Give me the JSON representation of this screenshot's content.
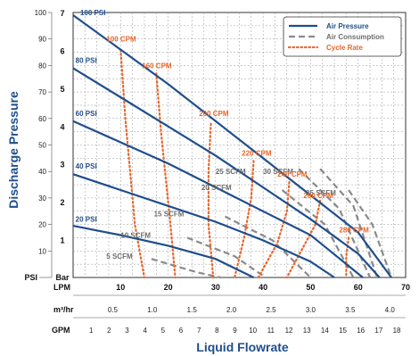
{
  "chart_data": {
    "type": "line",
    "title": "",
    "xlabel": "Liquid Flowrate",
    "ylabel": "Discharge Pressure",
    "x_axes": {
      "lpm": {
        "label": "LPM",
        "ticks": [
          "0",
          "10",
          "20",
          "30",
          "40",
          "50",
          "60",
          "70"
        ],
        "range": [
          0,
          70
        ]
      },
      "m3hr": {
        "label": "m³/hr",
        "ticks": [
          "0.5",
          "1.0",
          "1.5",
          "2.0",
          "2.5",
          "3.0",
          "3.5",
          "4.0"
        ]
      },
      "gpm": {
        "label": "GPM",
        "ticks": [
          "1",
          "2",
          "3",
          "4",
          "5",
          "6",
          "7",
          "8",
          "9",
          "10",
          "11",
          "12",
          "13",
          "14",
          "15",
          "16",
          "17",
          "18"
        ]
      }
    },
    "y_axes": {
      "psi": {
        "label": "PSI",
        "ticks": [
          "10",
          "20",
          "30",
          "40",
          "50",
          "60",
          "70",
          "80",
          "90",
          "100"
        ],
        "range": [
          0,
          100
        ]
      },
      "bar": {
        "label": "Bar",
        "ticks": [
          "1",
          "2",
          "3",
          "4",
          "5",
          "6",
          "7"
        ],
        "range": [
          0,
          7
        ]
      }
    },
    "legend": {
      "position": "top-right",
      "items": [
        {
          "name": "Air Pressure",
          "style": "solid",
          "color": "#1f4e8c"
        },
        {
          "name": "Air Consumption",
          "style": "dashed",
          "color": "#8a8a8a"
        },
        {
          "name": "Cycle Rate",
          "style": "dotted",
          "color": "#e8662a"
        }
      ]
    },
    "series": [
      {
        "name": "100 PSI",
        "group": "Air Pressure",
        "points": [
          [
            0,
            99
          ],
          [
            10,
            86
          ],
          [
            20,
            73
          ],
          [
            30,
            59
          ],
          [
            40,
            45
          ],
          [
            50,
            31
          ],
          [
            60,
            17
          ],
          [
            67,
            0
          ]
        ]
      },
      {
        "name": "80 PSI",
        "group": "Air Pressure",
        "points": [
          [
            0,
            79
          ],
          [
            10,
            68
          ],
          [
            20,
            57
          ],
          [
            30,
            46
          ],
          [
            40,
            34
          ],
          [
            50,
            22
          ],
          [
            60,
            9
          ],
          [
            64.5,
            0
          ]
        ]
      },
      {
        "name": "60 PSI",
        "group": "Air Pressure",
        "points": [
          [
            0,
            59
          ],
          [
            10,
            51
          ],
          [
            20,
            43
          ],
          [
            30,
            34
          ],
          [
            40,
            25
          ],
          [
            50,
            16
          ],
          [
            61,
            0
          ]
        ]
      },
      {
        "name": "40 PSI",
        "group": "Air Pressure",
        "points": [
          [
            0,
            39
          ],
          [
            10,
            33
          ],
          [
            20,
            27
          ],
          [
            30,
            21
          ],
          [
            40,
            14
          ],
          [
            50,
            6
          ],
          [
            55,
            0
          ]
        ]
      },
      {
        "name": "20 PSI",
        "group": "Air Pressure",
        "points": [
          [
            0,
            19.5
          ],
          [
            10,
            16
          ],
          [
            20,
            12
          ],
          [
            30,
            7
          ],
          [
            38,
            0
          ]
        ]
      },
      {
        "name": "5 SCFM",
        "group": "Air Consumption",
        "points": [
          [
            16.5,
            7
          ],
          [
            26,
            2
          ],
          [
            31,
            0
          ]
        ]
      },
      {
        "name": "10 SCFM",
        "group": "Air Consumption",
        "points": [
          [
            24,
            15
          ],
          [
            34,
            8
          ],
          [
            40.5,
            0
          ]
        ]
      },
      {
        "name": "15 SCFM",
        "group": "Air Consumption",
        "points": [
          [
            32,
            23
          ],
          [
            42,
            14
          ],
          [
            50,
            0
          ]
        ]
      },
      {
        "name": "20 SCFM",
        "group": "Air Consumption",
        "points": [
          [
            44,
            33
          ],
          [
            53,
            20
          ],
          [
            59,
            0
          ]
        ]
      },
      {
        "name": "25 SCFM",
        "group": "Air Consumption",
        "points": [
          [
            47.5,
            41
          ],
          [
            56,
            26
          ],
          [
            62.5,
            0
          ]
        ]
      },
      {
        "name": "30 SCFM",
        "group": "Air Consumption",
        "points": [
          [
            52,
            41
          ],
          [
            59,
            27
          ],
          [
            64,
            0
          ]
        ]
      },
      {
        "name": "35 SCFM",
        "group": "Air Consumption",
        "points": [
          [
            58,
            33
          ],
          [
            63,
            20
          ],
          [
            67,
            0
          ]
        ]
      },
      {
        "name": "100 CPM",
        "group": "Cycle Rate",
        "points": [
          [
            10,
            86
          ],
          [
            11,
            60
          ],
          [
            13,
            20
          ],
          [
            15,
            0
          ]
        ]
      },
      {
        "name": "160 CPM",
        "group": "Cycle Rate",
        "points": [
          [
            17.5,
            77
          ],
          [
            18.5,
            55
          ],
          [
            20.5,
            20
          ],
          [
            21.5,
            0
          ]
        ]
      },
      {
        "name": "200 CPM",
        "group": "Cycle Rate",
        "points": [
          [
            29,
            58
          ],
          [
            28.5,
            40
          ],
          [
            28.5,
            20
          ],
          [
            29.5,
            0
          ]
        ]
      },
      {
        "name": "220 CPM",
        "group": "Cycle Rate",
        "points": [
          [
            38,
            44
          ],
          [
            37.5,
            30
          ],
          [
            36,
            15
          ],
          [
            34,
            0
          ]
        ]
      },
      {
        "name": "240 CPM",
        "group": "Cycle Rate",
        "points": [
          [
            45.5,
            36
          ],
          [
            45,
            25
          ],
          [
            43,
            13
          ],
          [
            39,
            0
          ]
        ]
      },
      {
        "name": "260 CPM",
        "group": "Cycle Rate",
        "points": [
          [
            52,
            29
          ],
          [
            51,
            20
          ],
          [
            48,
            10
          ],
          [
            45,
            0
          ]
        ]
      },
      {
        "name": "280 CPM",
        "group": "Cycle Rate",
        "points": [
          [
            58,
            15
          ],
          [
            57.5,
            8
          ],
          [
            57.5,
            0
          ]
        ]
      }
    ],
    "curve_labels": [
      {
        "text": "100 PSI",
        "x": 1.5,
        "y": 99,
        "group": "Air Pressure"
      },
      {
        "text": "80 PSI",
        "x": 0.5,
        "y": 81,
        "group": "Air Pressure"
      },
      {
        "text": "60 PSI",
        "x": 0.5,
        "y": 61,
        "group": "Air Pressure"
      },
      {
        "text": "40 PSI",
        "x": 0.5,
        "y": 41,
        "group": "Air Pressure"
      },
      {
        "text": "20 PSI",
        "x": 0.5,
        "y": 21,
        "group": "Air Pressure"
      },
      {
        "text": "5 SCFM",
        "x": 7,
        "y": 7,
        "group": "Air Consumption"
      },
      {
        "text": "10 SCFM",
        "x": 10,
        "y": 15,
        "group": "Air Consumption"
      },
      {
        "text": "15 SCFM",
        "x": 17,
        "y": 23,
        "group": "Air Consumption"
      },
      {
        "text": "20 SCFM",
        "x": 27,
        "y": 33,
        "group": "Air Consumption"
      },
      {
        "text": "25 SCFM",
        "x": 30,
        "y": 39,
        "group": "Air Consumption"
      },
      {
        "text": "30 SCFM",
        "x": 40,
        "y": 39,
        "group": "Air Consumption"
      },
      {
        "text": "35 SCFM",
        "x": 49,
        "y": 31,
        "group": "Air Consumption"
      },
      {
        "text": "100 CPM",
        "x": 7,
        "y": 89,
        "group": "Cycle Rate"
      },
      {
        "text": "160 CPM",
        "x": 14.5,
        "y": 79,
        "group": "Cycle Rate"
      },
      {
        "text": "200 CPM",
        "x": 26.5,
        "y": 61,
        "group": "Cycle Rate"
      },
      {
        "text": "220 CPM",
        "x": 35.5,
        "y": 46,
        "group": "Cycle Rate"
      },
      {
        "text": "240 CPM",
        "x": 43,
        "y": 38,
        "group": "Cycle Rate"
      },
      {
        "text": "260 CPM",
        "x": 48.5,
        "y": 30,
        "group": "Cycle Rate"
      },
      {
        "text": "280 CPM",
        "x": 56,
        "y": 17,
        "group": "Cycle Rate"
      }
    ],
    "grid": true
  },
  "colors": {
    "pressure": "#1f4e8c",
    "consumption": "#8a8a8a",
    "cycle": "#e8662a",
    "axis_label": "#1f4e8c",
    "grid": "#9a9a9a"
  }
}
